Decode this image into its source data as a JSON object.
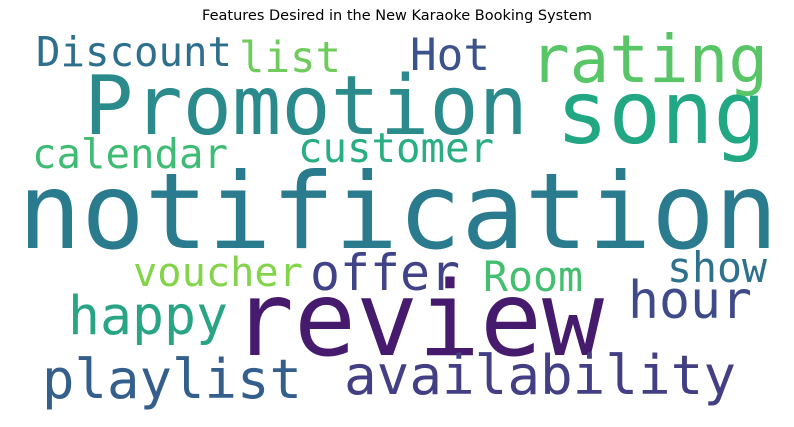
{
  "chart_data": {
    "type": "wordcloud",
    "title": "Features Desired in the New Karaoke Booking System",
    "words": [
      {
        "text": "notification",
        "weight": 100,
        "color": "#2a7b8e"
      },
      {
        "text": "review",
        "weight": 86,
        "color": "#461a6d"
      },
      {
        "text": "Promotion",
        "weight": 73,
        "color": "#2b8a8b"
      },
      {
        "text": "song",
        "weight": 66,
        "color": "#22a784"
      },
      {
        "text": "rating",
        "weight": 58,
        "color": "#58c667"
      },
      {
        "text": "availability",
        "weight": 46,
        "color": "#433f85"
      },
      {
        "text": "playlist",
        "weight": 50,
        "color": "#345f8c"
      },
      {
        "text": "hour",
        "weight": 47,
        "color": "#3e4a89"
      },
      {
        "text": "happy",
        "weight": 45,
        "color": "#29a586"
      },
      {
        "text": "Discount",
        "weight": 36,
        "color": "#2e6f8e"
      },
      {
        "text": "Hot",
        "weight": 36,
        "color": "#3b528b"
      },
      {
        "text": "list",
        "weight": 35,
        "color": "#6fcc5c"
      },
      {
        "text": "calendar",
        "weight": 33,
        "color": "#3fbc73"
      },
      {
        "text": "customer",
        "weight": 33,
        "color": "#28ae80"
      },
      {
        "text": "voucher",
        "weight": 32,
        "color": "#84d44b"
      },
      {
        "text": "offer",
        "weight": 33,
        "color": "#404387"
      },
      {
        "text": "Room",
        "weight": 33,
        "color": "#44bf70"
      },
      {
        "text": "show",
        "weight": 32,
        "color": "#2d718e"
      }
    ]
  }
}
